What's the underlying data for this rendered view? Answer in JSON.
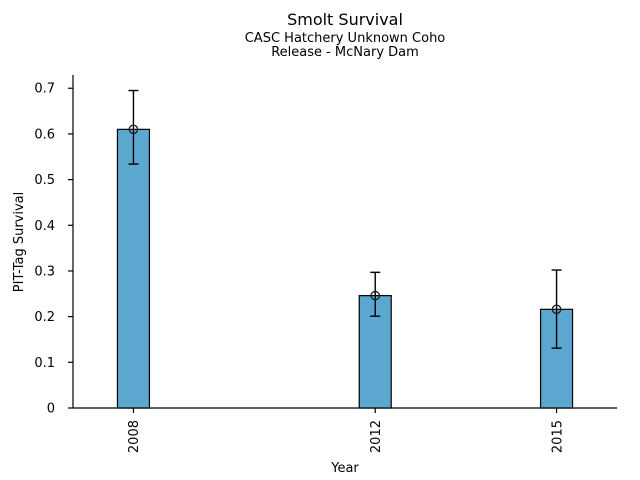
{
  "chart_data": {
    "type": "bar",
    "title": "Smolt Survival",
    "subtitle_lines": [
      "CASC Hatchery Unknown Coho",
      "Release - McNary Dam"
    ],
    "xlabel": "Year",
    "ylabel": "PIT-Tag Survival",
    "categories": [
      "2008",
      "2012",
      "2015"
    ],
    "x": [
      2008,
      2012,
      2015
    ],
    "series": [
      {
        "name": "PIT-Tag Survival",
        "values": [
          0.61,
          0.246,
          0.216
        ]
      }
    ],
    "error_bars": {
      "low": [
        0.534,
        0.201,
        0.131
      ],
      "high": [
        0.695,
        0.297,
        0.302
      ]
    },
    "xlim": [
      2007,
      2016
    ],
    "ylim": [
      0,
      0.729
    ],
    "yticks": [
      0,
      0.1,
      0.2,
      0.3,
      0.4,
      0.5,
      0.6,
      0.7
    ],
    "ytick_labels": [
      "0",
      "0.1",
      "0.2",
      "0.3",
      "0.4",
      "0.5",
      "0.6",
      "0.7"
    ],
    "x_tick_rotation_deg": 90,
    "grid": false,
    "legend": false,
    "marker": "open-circle",
    "bar_color": "#5BA7D0",
    "bar_edge_color": "#000000",
    "error_color": "#000000",
    "text_color": "#000000",
    "background_color": "#ffffff"
  }
}
